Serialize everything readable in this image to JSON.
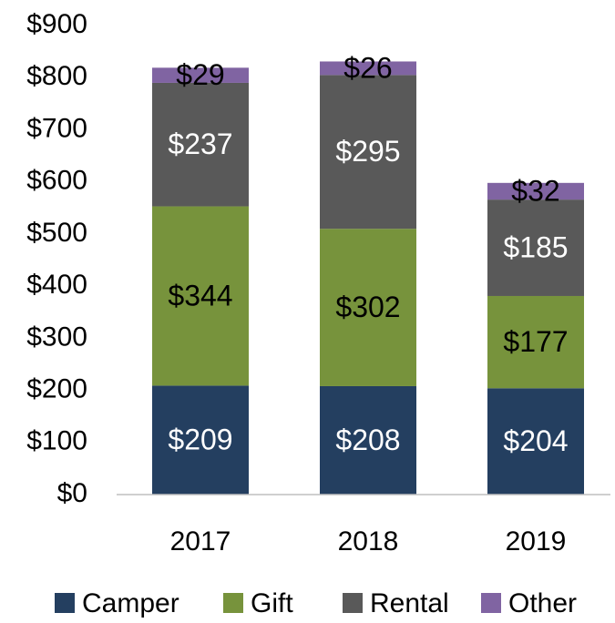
{
  "chart_data": {
    "type": "stacked_bar",
    "categories": [
      "2017",
      "2018",
      "2019"
    ],
    "series": [
      {
        "name": "Camper",
        "color": "#243f60",
        "label_color": "#ffffff",
        "values": [
          209,
          208,
          204
        ],
        "value_labels": [
          "$209",
          "$208",
          "$204"
        ]
      },
      {
        "name": "Gift",
        "color": "#77933c",
        "label_color": "#000000",
        "values": [
          344,
          302,
          177
        ],
        "value_labels": [
          "$344",
          "$302",
          "$177"
        ]
      },
      {
        "name": "Rental",
        "color": "#595959",
        "label_color": "#ffffff",
        "values": [
          237,
          295,
          185
        ],
        "value_labels": [
          "$237",
          "$295",
          "$185"
        ]
      },
      {
        "name": "Other",
        "color": "#8064a2",
        "label_color": "#000000",
        "values": [
          29,
          26,
          32
        ],
        "value_labels": [
          "$29",
          "$26",
          "$32"
        ]
      }
    ],
    "ylim": [
      0,
      900
    ],
    "yticks": [
      {
        "value": 0,
        "label": "$0"
      },
      {
        "value": 100,
        "label": "$100"
      },
      {
        "value": 200,
        "label": "$200"
      },
      {
        "value": 300,
        "label": "$300"
      },
      {
        "value": 400,
        "label": "$400"
      },
      {
        "value": 500,
        "label": "$500"
      },
      {
        "value": 600,
        "label": "$600"
      },
      {
        "value": 700,
        "label": "$700"
      },
      {
        "value": 800,
        "label": "$800"
      },
      {
        "value": 900,
        "label": "$900"
      }
    ],
    "grid": false,
    "legend": "bottom"
  }
}
